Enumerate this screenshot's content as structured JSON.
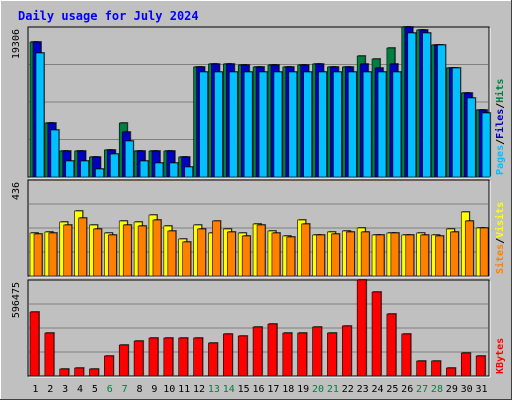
{
  "chart_data": {
    "type": "bar",
    "title": "Daily usage for July 2024",
    "categories": [
      "1",
      "2",
      "3",
      "4",
      "5",
      "6",
      "7",
      "8",
      "9",
      "10",
      "11",
      "12",
      "13",
      "14",
      "15",
      "16",
      "17",
      "18",
      "19",
      "20",
      "21",
      "22",
      "23",
      "24",
      "25",
      "26",
      "27",
      "28",
      "29",
      "30",
      "31"
    ],
    "weekend_days": [
      "6",
      "7",
      "13",
      "14",
      "20",
      "21",
      "27",
      "28"
    ],
    "colors": {
      "hits": "#008040",
      "files": "#0000c0",
      "pages": "#00c0ff",
      "visits": "#ffff00",
      "sites": "#ff8000",
      "kbytes": "#ff0000",
      "weekday_label": "#000000",
      "weekend_label": "#008040",
      "title": "#0000ff",
      "plot_bg": "#c0c0c0",
      "grid": "#808080"
    },
    "panels": [
      {
        "id": "hits-files-pages",
        "max_label": "19306",
        "ymax": 19306,
        "legend": [
          {
            "text": "Hits",
            "color": "#008040"
          },
          {
            "sep": "/"
          },
          {
            "text": "Files",
            "color": "#0000c0"
          },
          {
            "sep": "/"
          },
          {
            "text": "Pages",
            "color": "#00c0ff"
          }
        ],
        "series": [
          {
            "name": "Hits",
            "color": "#008040",
            "values": [
              17400,
              7000,
              3300,
              3300,
              2600,
              3500,
              6900,
              3300,
              3300,
              3300,
              2600,
              14200,
              14600,
              14600,
              14400,
              14200,
              14400,
              14200,
              14400,
              14500,
              14200,
              14200,
              15600,
              15200,
              16600,
              19300,
              18900,
              17000,
              14000,
              10800,
              8600
            ]
          },
          {
            "name": "Files",
            "color": "#0000c0",
            "values": [
              17400,
              7000,
              3300,
              3300,
              2600,
              3500,
              5800,
              3300,
              3300,
              3300,
              2600,
              14200,
              14600,
              14600,
              14400,
              14200,
              14400,
              14200,
              14400,
              14500,
              14200,
              14200,
              14600,
              14000,
              14600,
              19300,
              18900,
              17000,
              14000,
              10800,
              8600
            ]
          },
          {
            "name": "Pages",
            "color": "#00c0ff",
            "values": [
              16000,
              6000,
              2000,
              2000,
              1000,
              3000,
              4600,
              2000,
              1800,
              1800,
              1300,
              13500,
              13500,
              13500,
              13500,
              13500,
              13500,
              13500,
              13500,
              13500,
              13500,
              13500,
              13500,
              13500,
              13500,
              18500,
              18500,
              17000,
              14000,
              10200,
              8300
            ]
          }
        ]
      },
      {
        "id": "visits-sites",
        "max_label": "436",
        "ymax": 436,
        "legend": [
          {
            "text": "Visits",
            "color": "#ffff00"
          },
          {
            "sep": "/"
          },
          {
            "text": "Sites",
            "color": "#ff8000"
          }
        ],
        "series": [
          {
            "name": "Visits",
            "color": "#ffff00",
            "values": [
              195,
              200,
              245,
              295,
              230,
              195,
              250,
              245,
              275,
              225,
              170,
              230,
              195,
              215,
              195,
              235,
              205,
              180,
              255,
              185,
              200,
              205,
              220,
              185,
              195,
              185,
              195,
              185,
              215,
              290,
              220
            ]
          },
          {
            "name": "Sites",
            "color": "#ff8000",
            "values": [
              190,
              195,
              230,
              265,
              215,
              185,
              230,
              225,
              255,
              205,
              155,
              215,
              250,
              200,
              180,
              230,
              195,
              175,
              235,
              185,
              190,
              200,
              200,
              185,
              195,
              185,
              185,
              180,
              200,
              250,
              220
            ]
          }
        ]
      },
      {
        "id": "kbytes",
        "max_label": "596475",
        "ymax": 596475,
        "legend": [
          {
            "text": "KBytes",
            "color": "#ff0000"
          }
        ],
        "series": [
          {
            "name": "KBytes",
            "color": "#ff0000",
            "values": [
              400000,
              268000,
              42000,
              47000,
              42000,
              122000,
              190000,
              220000,
              237000,
              237000,
              237000,
              237000,
              202000,
              260000,
              250000,
              305000,
              325000,
              265000,
              265000,
              305000,
              265000,
              310000,
              596475,
              520000,
              383000,
              260000,
              95000,
              95000,
              48000,
              145000,
              125000
            ]
          }
        ]
      }
    ]
  }
}
